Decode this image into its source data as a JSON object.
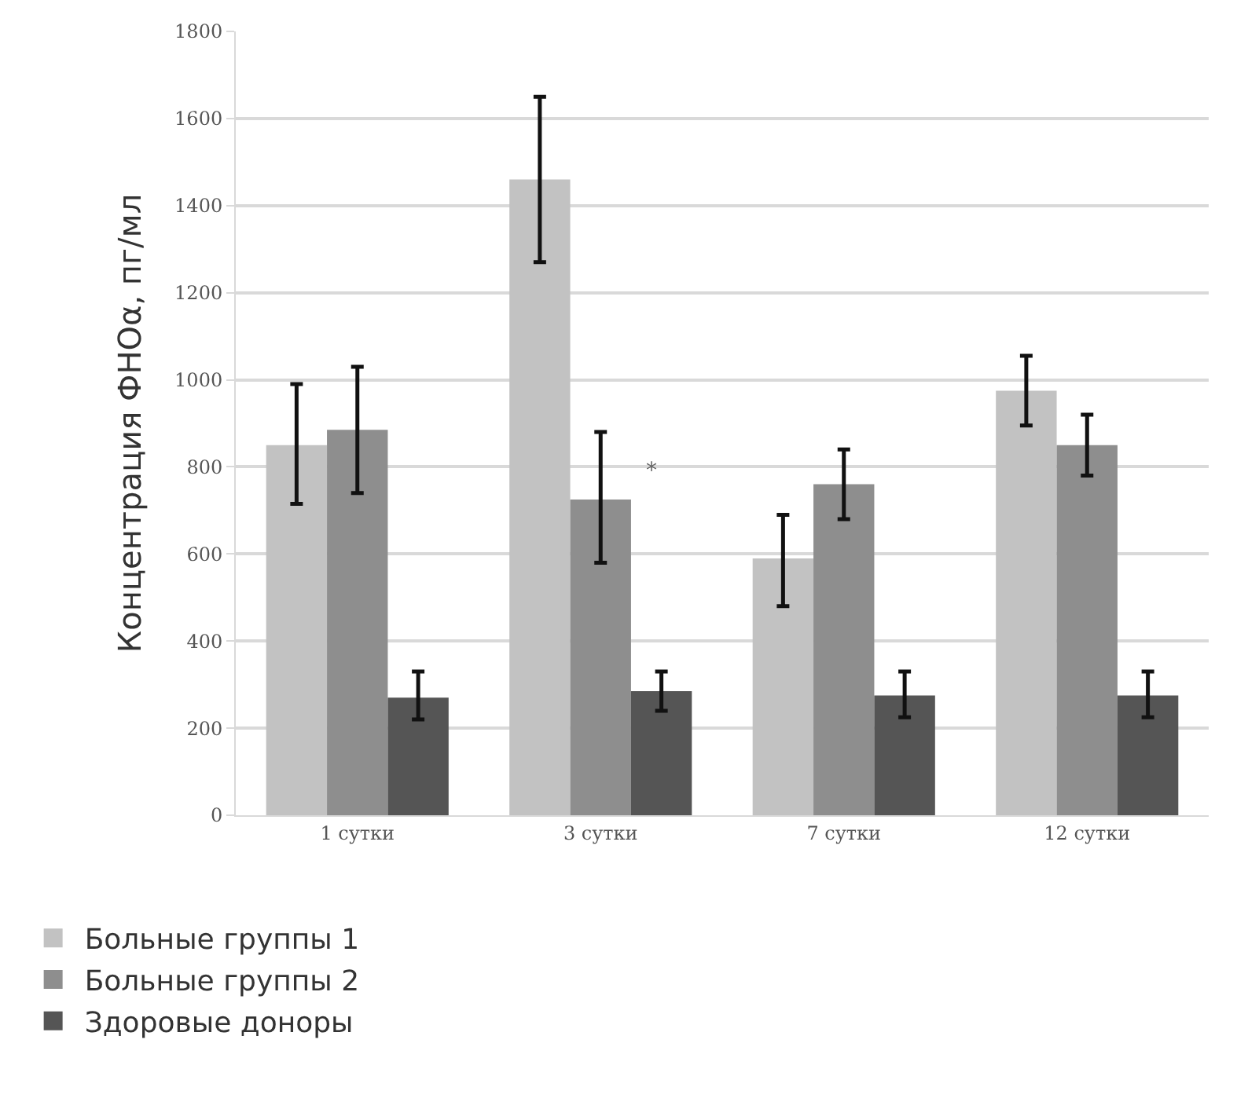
{
  "chart_data": {
    "type": "bar",
    "ylabel": "Концентрация ФНОα, пг/мл",
    "categories": [
      "1 сутки",
      "3 сутки",
      "7 сутки",
      "12 сутки"
    ],
    "series": [
      {
        "name": "Больные группы 1",
        "color": "#c2c2c2",
        "values": [
          850,
          1460,
          590,
          975
        ],
        "errors": [
          [
            715,
            990
          ],
          [
            1270,
            1650
          ],
          [
            480,
            690
          ],
          [
            895,
            1055
          ]
        ]
      },
      {
        "name": "Больные группы 2",
        "color": "#8e8e8e",
        "values": [
          885,
          725,
          760,
          850
        ],
        "errors": [
          [
            740,
            1030
          ],
          [
            580,
            880
          ],
          [
            680,
            840
          ],
          [
            780,
            920
          ]
        ]
      },
      {
        "name": "Здоровые доноры",
        "color": "#555555",
        "values": [
          270,
          285,
          275,
          275
        ],
        "errors": [
          [
            220,
            330
          ],
          [
            240,
            330
          ],
          [
            225,
            330
          ],
          [
            225,
            330
          ]
        ]
      }
    ],
    "annotations": [
      {
        "text": "*",
        "x": "3 сутки",
        "y": 790
      }
    ],
    "ylim": [
      0,
      1800
    ],
    "yticks": [
      0,
      200,
      400,
      600,
      800,
      1000,
      1200,
      1400,
      1600,
      1800
    ],
    "grid": "y",
    "legend": "bottom left"
  }
}
